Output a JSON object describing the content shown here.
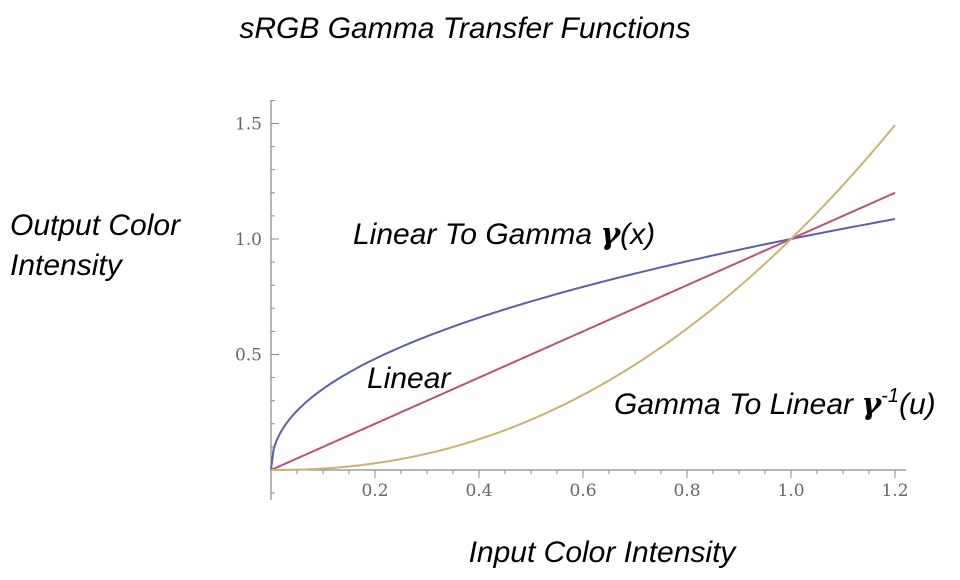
{
  "chart_data": {
    "type": "line",
    "title": "sRGB Gamma Transfer Functions",
    "xlabel": "Input Color Intensity",
    "ylabel_line1": "Output Color",
    "ylabel_line2": "Intensity",
    "xlim": [
      0,
      1.2
    ],
    "ylim": [
      0,
      1.6
    ],
    "grid": false,
    "x_ticks": [
      0.2,
      0.4,
      0.6,
      0.8,
      1.0,
      1.2
    ],
    "x_tick_labels": [
      "0.2",
      "0.4",
      "0.6",
      "0.8",
      "1.0",
      "1.2"
    ],
    "y_ticks": [
      0.5,
      1.0,
      1.5
    ],
    "y_tick_labels": [
      "0.5",
      "1.0",
      "1.5"
    ],
    "x": [
      0,
      0.05,
      0.1,
      0.15,
      0.2,
      0.25,
      0.3,
      0.35,
      0.4,
      0.45,
      0.5,
      0.55,
      0.6,
      0.65,
      0.7,
      0.75,
      0.8,
      0.85,
      0.9,
      0.95,
      1.0,
      1.05,
      1.1,
      1.15,
      1.2
    ],
    "series": [
      {
        "name": "Linear To Gamma",
        "color": "#5a5fae",
        "values": [
          0,
          0.256,
          0.351,
          0.423,
          0.482,
          0.533,
          0.579,
          0.621,
          0.66,
          0.696,
          0.73,
          0.762,
          0.793,
          0.822,
          0.85,
          0.877,
          0.903,
          0.929,
          0.953,
          0.977,
          1.0,
          1.022,
          1.044,
          1.065,
          1.086
        ]
      },
      {
        "name": "Linear",
        "color": "#c0507a",
        "values": [
          0,
          0.05,
          0.1,
          0.15,
          0.2,
          0.25,
          0.3,
          0.35,
          0.4,
          0.45,
          0.5,
          0.55,
          0.6,
          0.65,
          0.7,
          0.75,
          0.8,
          0.85,
          0.9,
          0.95,
          1.0,
          1.05,
          1.1,
          1.15,
          1.2
        ]
      },
      {
        "name": "Gamma To Linear",
        "color": "#c8b46e",
        "values": [
          0,
          0.004,
          0.01,
          0.019,
          0.033,
          0.051,
          0.073,
          0.1,
          0.133,
          0.172,
          0.214,
          0.262,
          0.319,
          0.381,
          0.448,
          0.522,
          0.604,
          0.689,
          0.787,
          0.888,
          1.0,
          1.121,
          1.242,
          1.385,
          1.526
        ]
      }
    ],
    "annotations": {
      "linear_to_gamma": {
        "main": "Linear To Gamma ",
        "gamma": "γ",
        "args": "(x)"
      },
      "linear": "Linear",
      "gamma_to_linear": {
        "main": "Gamma To Linear ",
        "gamma": "γ",
        "sup": "-1",
        "args": "(u)"
      }
    }
  }
}
